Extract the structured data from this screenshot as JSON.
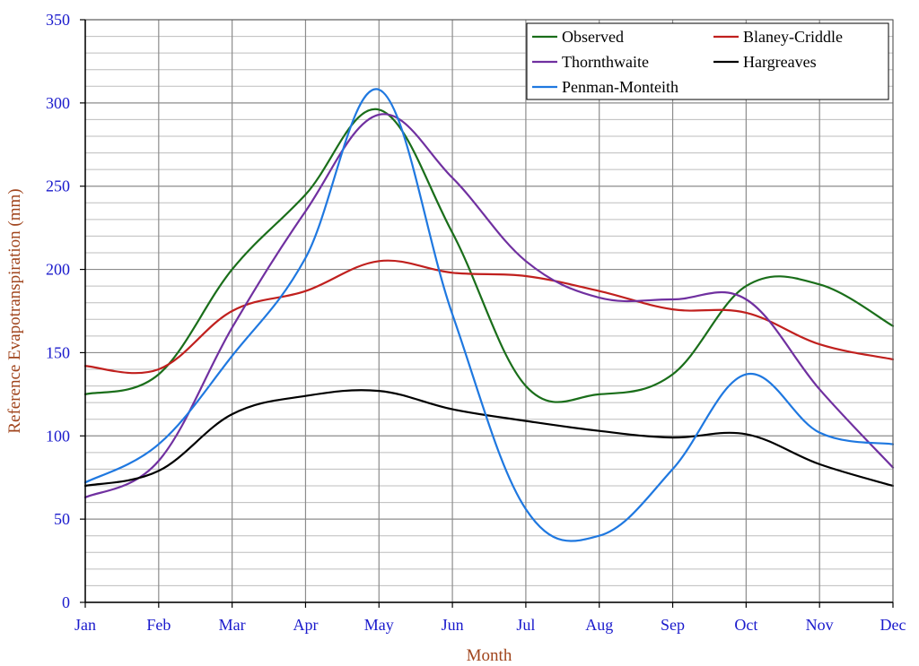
{
  "chart_data": {
    "type": "line",
    "title": "",
    "xlabel": "Month",
    "ylabel": "Reference Evapotranspiration (mm)",
    "ylim": [
      0,
      350
    ],
    "yticks": [
      0,
      50,
      100,
      150,
      200,
      250,
      300,
      350
    ],
    "grid": true,
    "legend_position": "top-right",
    "categories": [
      "Jan",
      "Feb",
      "Mar",
      "Apr",
      "May",
      "Jun",
      "Jul",
      "Aug",
      "Sep",
      "Oct",
      "Nov",
      "Dec"
    ],
    "series": [
      {
        "name": "Observed",
        "color": "#1a6e1a",
        "values": [
          125,
          137,
          200,
          245,
          296,
          222,
          130,
          125,
          137,
          190,
          191,
          166
        ]
      },
      {
        "name": "Blaney-Criddle",
        "color": "#c0201e",
        "values": [
          142,
          140,
          175,
          187,
          205,
          198,
          196,
          187,
          176,
          174,
          155,
          146
        ]
      },
      {
        "name": "Thornthwaite",
        "color": "#7030a0",
        "values": [
          63,
          85,
          165,
          235,
          293,
          255,
          205,
          183,
          182,
          182,
          128,
          81
        ]
      },
      {
        "name": "Hargreaves",
        "color": "#000000",
        "values": [
          70,
          79,
          113,
          124,
          127,
          116,
          109,
          103,
          99,
          101,
          83,
          70
        ]
      },
      {
        "name": "Penman-Monteith",
        "color": "#1f78e0",
        "values": [
          72,
          95,
          148,
          207,
          308,
          173,
          56,
          40,
          80,
          137,
          102,
          95
        ]
      }
    ]
  }
}
